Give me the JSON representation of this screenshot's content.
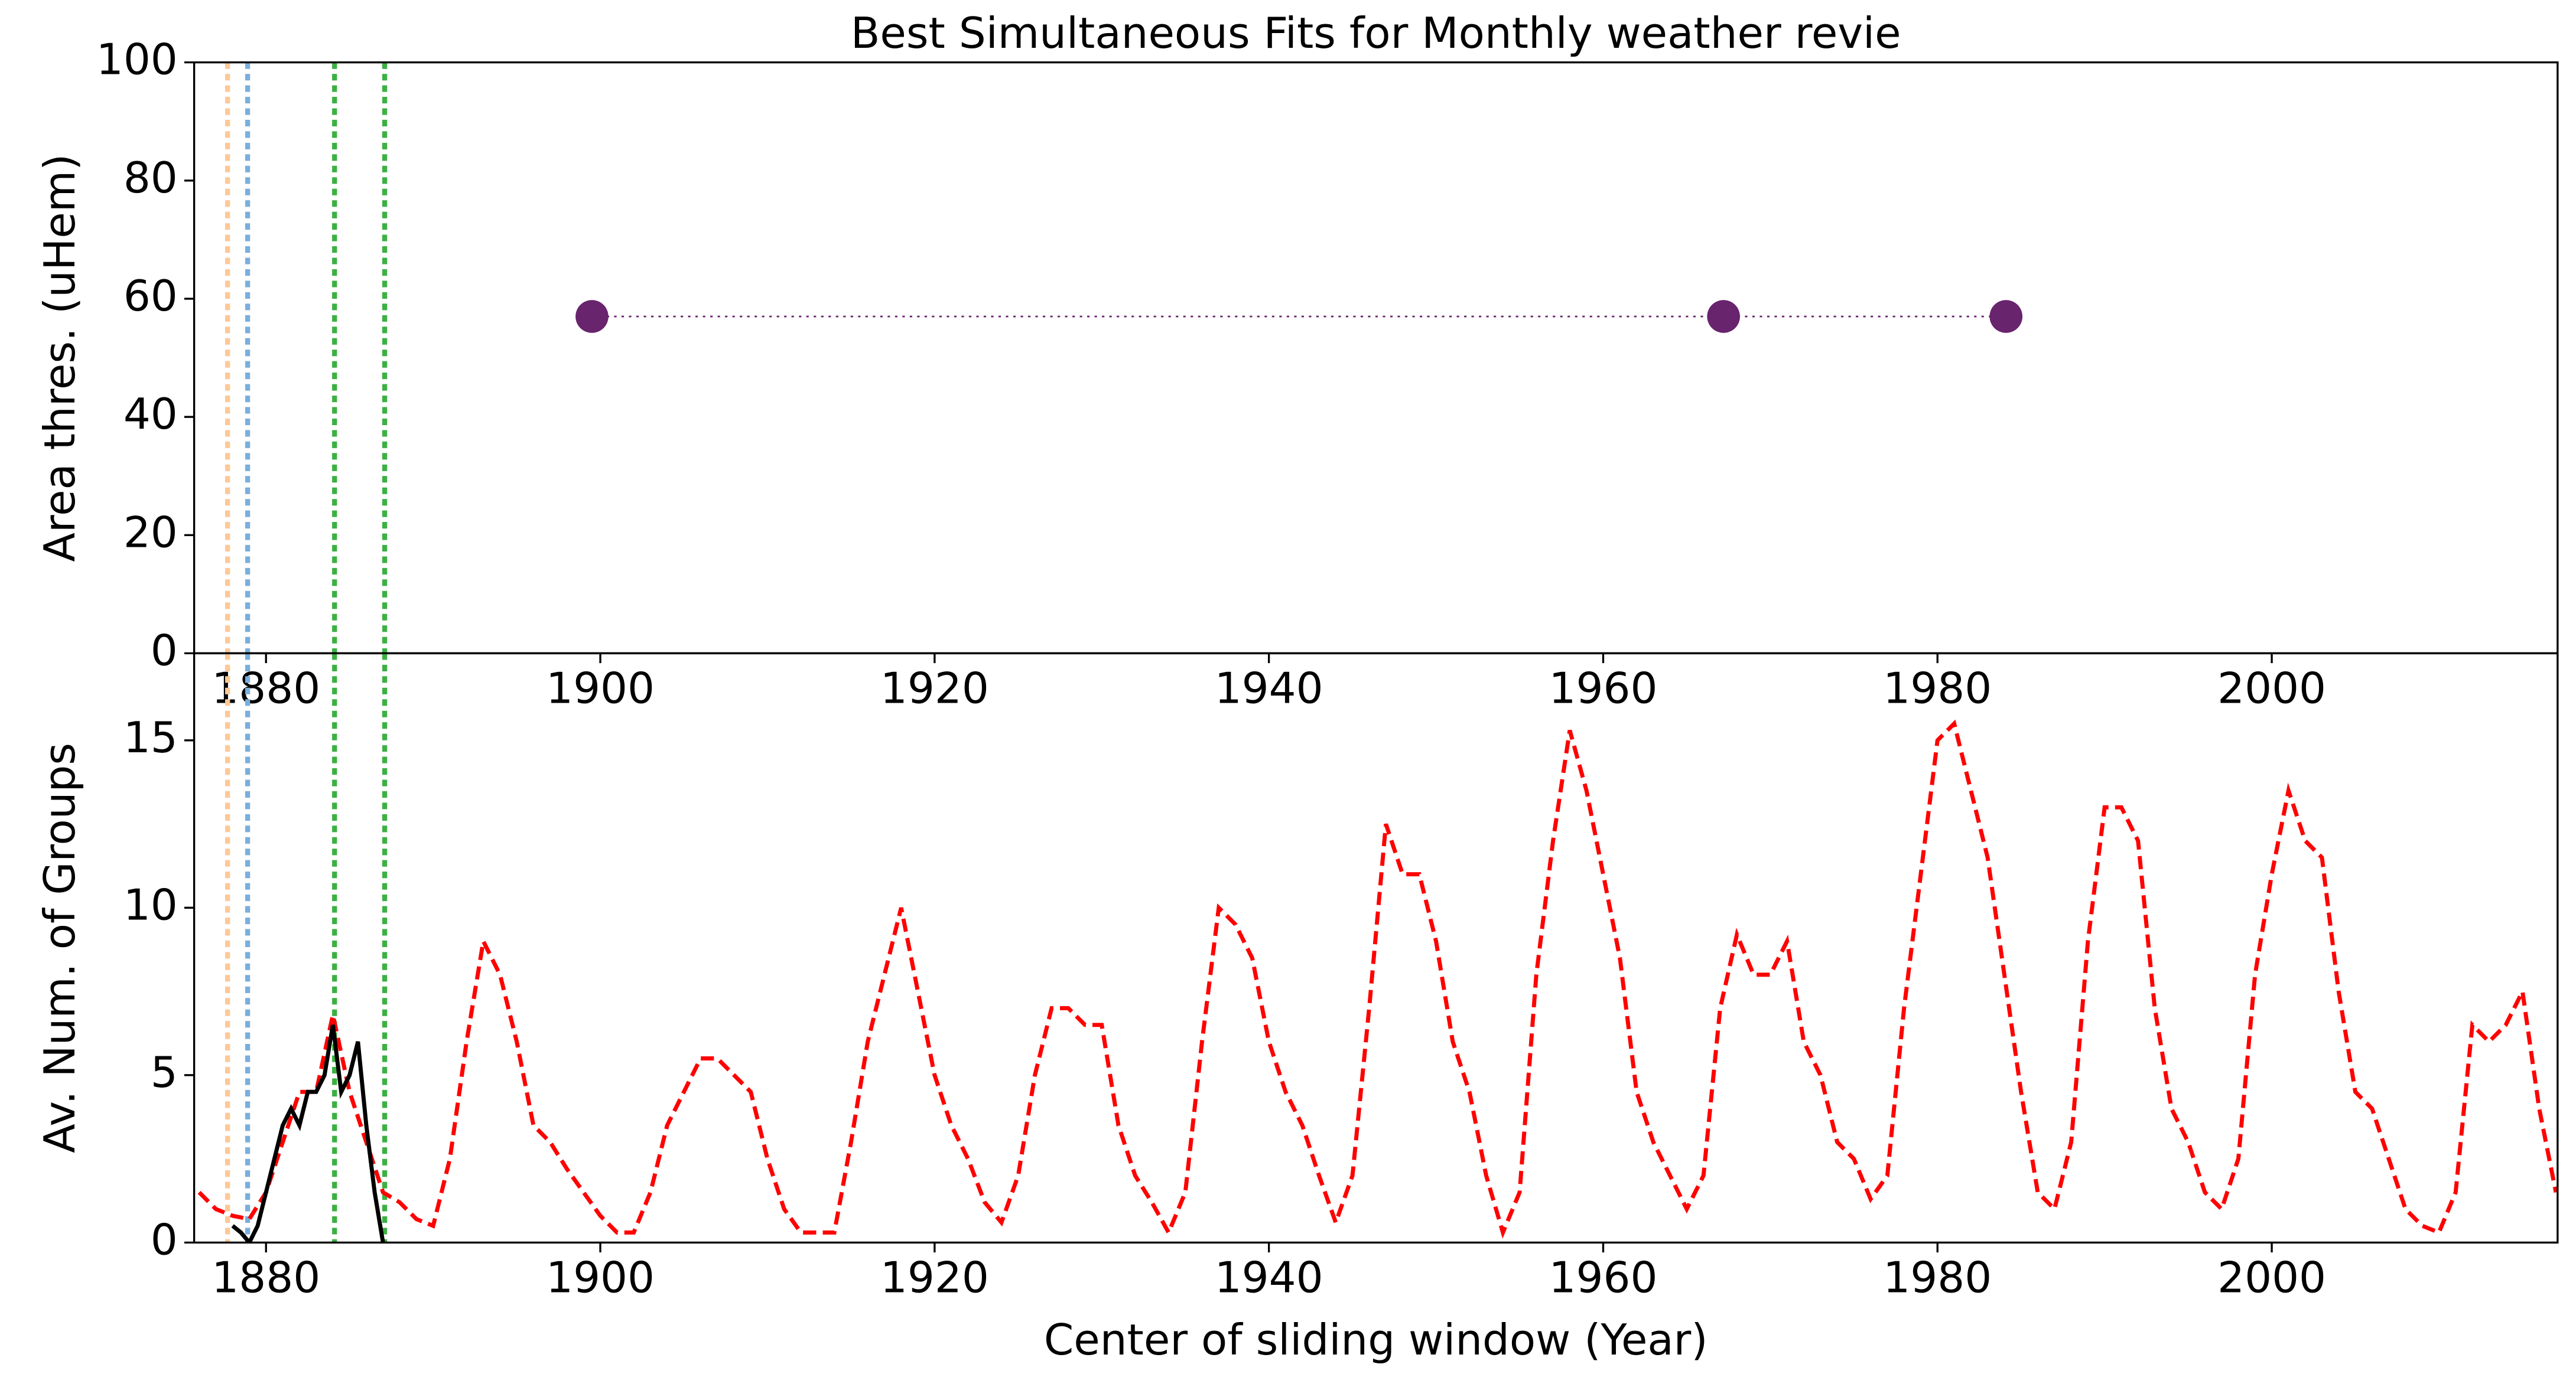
{
  "chart_data": [
    {
      "type": "line",
      "title": "Best Simultaneous Fits for Monthly weather revie",
      "ylabel": "Area thres. (uHem)",
      "xlim": [
        1875.7,
        2017.1
      ],
      "xticks": [
        1880,
        1900,
        1920,
        1940,
        1960,
        1980,
        2000
      ],
      "ylim": [
        0,
        100
      ],
      "yticks": [
        0,
        20,
        40,
        60,
        80,
        100
      ],
      "vlines": [
        {
          "x": 1877.7,
          "color": "#ffc896"
        },
        {
          "x": 1878.9,
          "color": "#7aaedc"
        },
        {
          "x": 1884.1,
          "color": "#3cb043"
        },
        {
          "x": 1887.1,
          "color": "#3cb043"
        }
      ],
      "series": [
        {
          "color": "#68246d",
          "linestyle": "dotted",
          "marker": true,
          "x": [
            1899.5,
            1967.2,
            1984.1
          ],
          "values": [
            57,
            57,
            57
          ]
        }
      ]
    },
    {
      "type": "line",
      "ylabel": "Av. Num. of Groups",
      "xlabel": "Center of sliding window (Year)",
      "xlim": [
        1875.7,
        2017.1
      ],
      "xticks": [
        1880,
        1900,
        1920,
        1940,
        1960,
        1980,
        2000
      ],
      "ylim": [
        0,
        17.6
      ],
      "yticks": [
        0,
        5,
        10,
        15
      ],
      "vlines": [
        {
          "x": 1877.7,
          "color": "#ffc896"
        },
        {
          "x": 1878.9,
          "color": "#7aaedc"
        },
        {
          "x": 1884.1,
          "color": "#3cb043"
        },
        {
          "x": 1887.1,
          "color": "#3cb043"
        }
      ],
      "series": [
        {
          "color": "#ff0000",
          "linestyle": "dashed",
          "marker": false,
          "x": [
            1876,
            1877,
            1878,
            1879,
            1880,
            1881,
            1882,
            1883,
            1884,
            1885,
            1886,
            1887,
            1888,
            1889,
            1890,
            1891,
            1892,
            1893,
            1894,
            1895,
            1896,
            1897,
            1898,
            1899,
            1900,
            1901,
            1902,
            1903,
            1904,
            1905,
            1906,
            1907,
            1908,
            1909,
            1910,
            1911,
            1912,
            1913,
            1914,
            1915,
            1916,
            1917,
            1918,
            1919,
            1920,
            1921,
            1922,
            1923,
            1924,
            1925,
            1926,
            1927,
            1928,
            1929,
            1930,
            1931,
            1932,
            1933,
            1934,
            1935,
            1936,
            1937,
            1938,
            1939,
            1940,
            1941,
            1942,
            1943,
            1944,
            1945,
            1946,
            1947,
            1948,
            1949,
            1950,
            1951,
            1952,
            1953,
            1954,
            1955,
            1956,
            1957,
            1958,
            1959,
            1960,
            1961,
            1962,
            1963,
            1964,
            1965,
            1966,
            1967,
            1968,
            1969,
            1970,
            1971,
            1972,
            1973,
            1974,
            1975,
            1976,
            1977,
            1978,
            1979,
            1980,
            1981,
            1982,
            1983,
            1984,
            1985,
            1986,
            1987,
            1988,
            1989,
            1990,
            1991,
            1992,
            1993,
            1994,
            1995,
            1996,
            1997,
            1998,
            1999,
            2000,
            2001,
            2002,
            2003,
            2004,
            2005,
            2006,
            2007,
            2008,
            2009,
            2010,
            2011,
            2012,
            2013,
            2014,
            2015,
            2016,
            2017
          ],
          "values": [
            1.5,
            1.0,
            0.8,
            0.7,
            1.5,
            3,
            4.5,
            4.5,
            6.8,
            4.5,
            3,
            1.5,
            1.2,
            0.7,
            0.5,
            2.5,
            6,
            9,
            8,
            6,
            3.5,
            3,
            2.2,
            1.5,
            0.8,
            0.3,
            0.3,
            1.5,
            3.5,
            4.5,
            5.5,
            5.5,
            5,
            4.5,
            2.5,
            1,
            0.3,
            0.3,
            0.3,
            3,
            6,
            8,
            10,
            7.5,
            5,
            3.5,
            2.5,
            1.2,
            0.6,
            2,
            5,
            7,
            7,
            6.5,
            6.5,
            3.5,
            2,
            1.2,
            0.3,
            1.5,
            6,
            10,
            9.5,
            8.5,
            6,
            4.5,
            3.5,
            2,
            0.6,
            2,
            7,
            12.5,
            11,
            11,
            9,
            6,
            4.5,
            2,
            0.3,
            1.5,
            8,
            12,
            15.3,
            13.5,
            11,
            8.5,
            4.5,
            3,
            2,
            1,
            2,
            7,
            9.2,
            8,
            8,
            9,
            6,
            5,
            3,
            2.5,
            1.3,
            2,
            7,
            11,
            15,
            15.5,
            13.5,
            11.5,
            8,
            4.5,
            1.5,
            1,
            3,
            9,
            13,
            13,
            12,
            7,
            4,
            3,
            1.5,
            1,
            2.5,
            8,
            11,
            13.5,
            12,
            11.5,
            7.5,
            4.5,
            4,
            2.5,
            1,
            0.5,
            0.3,
            1.5,
            6.5,
            6,
            6.5,
            7.5,
            4,
            1.5
          ]
        },
        {
          "color": "#000000",
          "linestyle": "solid",
          "marker": false,
          "x": [
            1878,
            1878.5,
            1879,
            1879.5,
            1880,
            1880.5,
            1881,
            1881.5,
            1882,
            1882.5,
            1883,
            1883.5,
            1884,
            1884.5,
            1885,
            1885.5,
            1886,
            1886.5,
            1887
          ],
          "values": [
            0.5,
            0.3,
            0,
            0.5,
            1.5,
            2.5,
            3.5,
            4,
            3.5,
            4.5,
            4.5,
            5,
            6.5,
            4.5,
            5,
            6,
            3.5,
            1.5,
            0
          ]
        }
      ]
    }
  ]
}
